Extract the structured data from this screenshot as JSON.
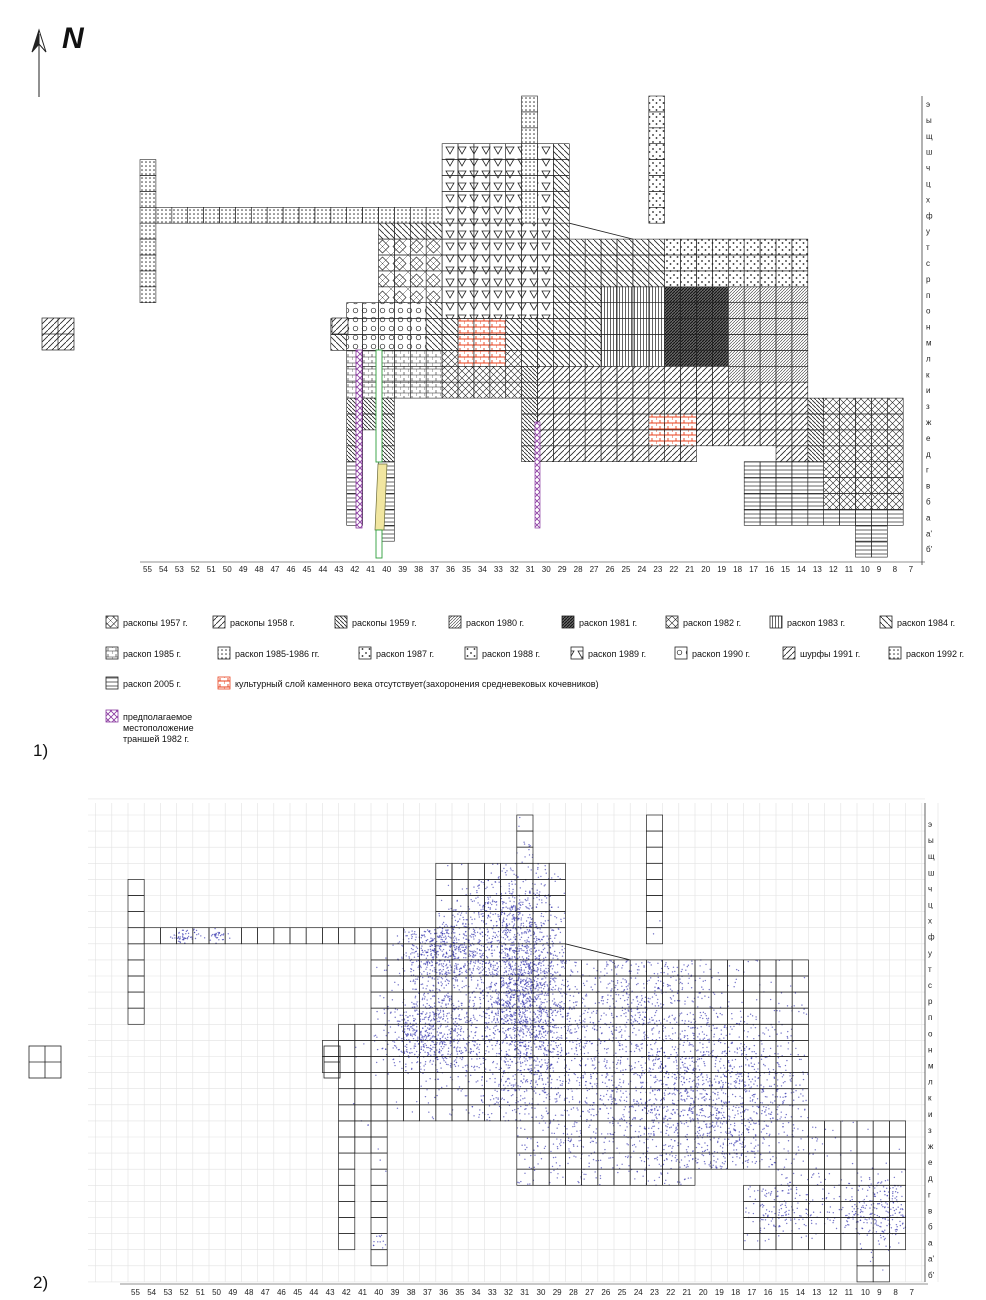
{
  "north_label": "N",
  "panel_labels": [
    "1)",
    "2)"
  ],
  "row_letters": [
    "э",
    "ы",
    "щ",
    "ш",
    "ч",
    "ц",
    "х",
    "ф",
    "у",
    "т",
    "с",
    "р",
    "п",
    "о",
    "н",
    "м",
    "л",
    "к",
    "и",
    "з",
    "ж",
    "е",
    "д",
    "г",
    "в",
    "б",
    "а",
    "а'",
    "б'"
  ],
  "column_numbers": [
    "55",
    "54",
    "53",
    "52",
    "51",
    "50",
    "49",
    "48",
    "47",
    "46",
    "45",
    "44",
    "43",
    "42",
    "41",
    "40",
    "39",
    "38",
    "37",
    "36",
    "35",
    "34",
    "33",
    "32",
    "31",
    "30",
    "29",
    "28",
    "27",
    "26",
    "25",
    "24",
    "23",
    "22",
    "21",
    "20",
    "19",
    "18",
    "17",
    "16",
    "15",
    "14",
    "13",
    "12",
    "11",
    "10",
    "9",
    "8",
    "7"
  ],
  "legend": {
    "items": [
      {
        "label": "раскопы 1957 г.",
        "pattern": "diamond"
      },
      {
        "label": "раскопы 1958 г.",
        "pattern": "diag"
      },
      {
        "label": "раскопы 1959 г.",
        "pattern": "diag-dense"
      },
      {
        "label": "раскоп 1980 г.",
        "pattern": "diag-fine"
      },
      {
        "label": "раскоп 1981 г.",
        "pattern": "dark"
      },
      {
        "label": "раскоп 1982 г.",
        "pattern": "cross"
      },
      {
        "label": "раскоп 1983 г.",
        "pattern": "vert"
      },
      {
        "label": "раскоп 1984 г.",
        "pattern": "diag-back"
      },
      {
        "label": "раскоп 1985 г.",
        "pattern": "brick"
      },
      {
        "label": "раскоп 1985-1986 гг.",
        "pattern": "dots-dense"
      },
      {
        "label": "раскоп 1987 г.",
        "pattern": "dots"
      },
      {
        "label": "раскоп 1988 г.",
        "pattern": "dots"
      },
      {
        "label": "раскоп 1989 г.",
        "pattern": "tri"
      },
      {
        "label": "раскоп 1990 г.",
        "pattern": "circ"
      },
      {
        "label": "шурфы 1991 г.",
        "pattern": "diag"
      },
      {
        "label": "раскоп 1992 г.",
        "pattern": "dots-dense"
      },
      {
        "label": "раскоп 2005 г.",
        "pattern": "horiz"
      },
      {
        "label": "культурный слой каменного века отсутствует(захоронения средневековых кочевников)",
        "pattern": "red-brick"
      },
      {
        "label_lines": [
          "предполагаемое",
          "местоположение",
          "траншей 1982 г."
        ],
        "pattern": "purple-cross"
      }
    ]
  },
  "colors": {
    "grid": "#222222",
    "scatter": "#3a3ab0",
    "red": "#e8401c",
    "purple": "#8a3aa0",
    "green": "#2e9e3a",
    "yellow": "#f1e6a0"
  }
}
